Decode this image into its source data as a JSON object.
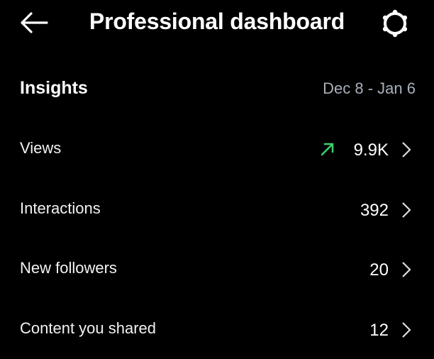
{
  "header": {
    "title": "Professional dashboard",
    "back_icon": "arrow-left-icon",
    "settings_icon": "gear-icon"
  },
  "insights": {
    "title": "Insights",
    "date_range": "Dec 8 - Jan 6",
    "rows": [
      {
        "label": "Views",
        "value": "9.9K",
        "trend": "up"
      },
      {
        "label": "Interactions",
        "value": "392"
      },
      {
        "label": "New followers",
        "value": "20"
      },
      {
        "label": "Content you shared",
        "value": "12"
      }
    ]
  },
  "colors": {
    "background": "#000000",
    "trend_up": "#3ccf6e",
    "date_range": "#a8b0ba"
  }
}
